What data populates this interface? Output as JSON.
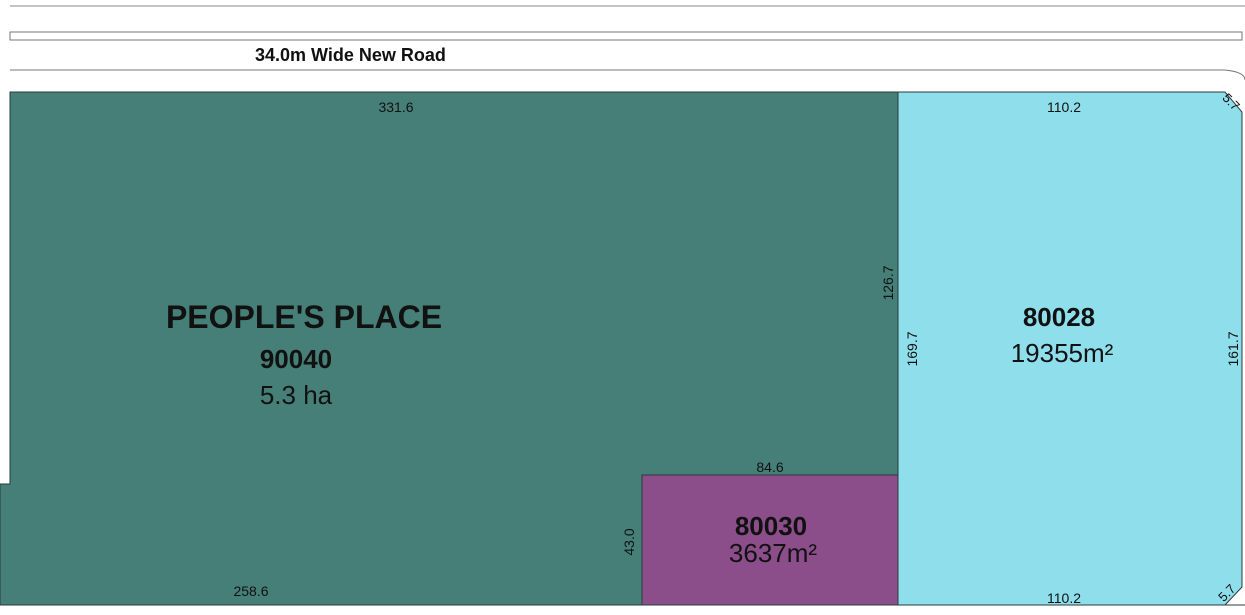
{
  "road": {
    "label": "34.0m  Wide New  Road"
  },
  "lots": {
    "peoples_place": {
      "name": "PEOPLE'S PLACE",
      "number": "90040",
      "area": "5.3 ha",
      "color": "#457f77"
    },
    "lot_80028": {
      "number": "80028",
      "area": "19355m²",
      "color": "#8fdeec"
    },
    "lot_80030": {
      "number": "80030",
      "area": "3637m²",
      "color": "#8c4d8b"
    }
  },
  "dimensions": {
    "peoples_top": "331.6",
    "peoples_bottom": "258.6",
    "peoples_right_upper": "126.7",
    "lot80028_left": "169.7",
    "lot80028_right": "161.7",
    "lot80028_top": "110.2",
    "lot80028_bottom": "110.2",
    "corner_top": "5.7",
    "corner_bottom": "5.7",
    "lot80030_top": "84.6",
    "lot80030_left": "43.0"
  }
}
